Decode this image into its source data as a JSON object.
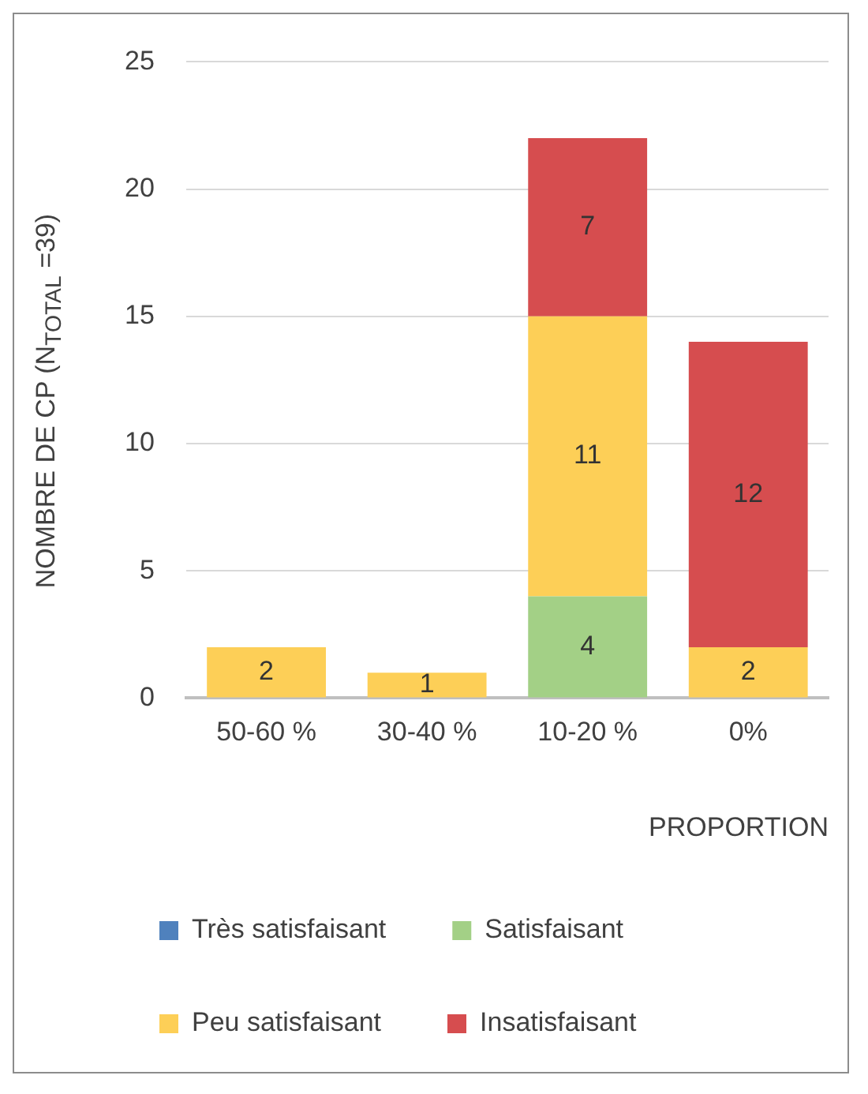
{
  "chart_data": {
    "type": "bar",
    "stacked": true,
    "xlabel": "PROPORTION",
    "ylabel": "NOMBRE DE CP  (N$_{TOTAL}$ =39)",
    "categories": [
      "50-60 %",
      "30-40 %",
      "10-20 %",
      "0%"
    ],
    "series": [
      {
        "name": "Très satisfaisant",
        "color": "#4f81bd",
        "values": [
          0,
          0,
          0,
          0
        ],
        "value_labels": [
          null,
          null,
          null,
          null
        ]
      },
      {
        "name": "Satisfaisant",
        "color": "#a3d086",
        "values": [
          0,
          0,
          4,
          0
        ],
        "value_labels": [
          null,
          null,
          "4",
          null
        ]
      },
      {
        "name": "Peu satisfaisant",
        "color": "#fdcf57",
        "values": [
          2,
          1,
          11,
          2
        ],
        "value_labels": [
          "2",
          "1",
          "11",
          "2"
        ]
      },
      {
        "name": "Insatisfaisant",
        "color": "#d64d4f",
        "values": [
          0,
          0,
          7,
          12
        ],
        "value_labels": [
          null,
          null,
          "7",
          "12"
        ]
      }
    ],
    "ylim": [
      0,
      25
    ],
    "yticks": [
      0,
      5,
      10,
      15,
      20,
      25
    ],
    "grid": "y",
    "legend": "bottom"
  }
}
